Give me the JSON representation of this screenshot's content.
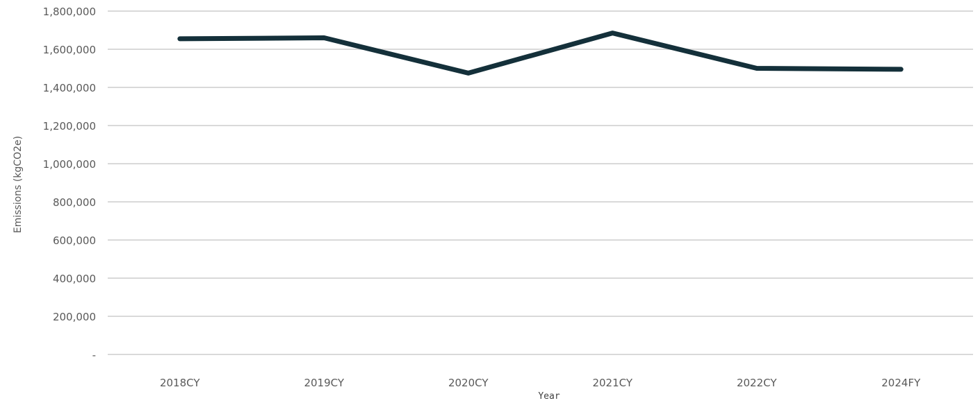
{
  "chart_data": {
    "type": "line",
    "title": "",
    "xlabel": "Year",
    "ylabel": "Emissions (kgCO2e)",
    "categories": [
      "2018CY",
      "2019CY",
      "2020CY",
      "2021CY",
      "2022CY",
      "2024FY"
    ],
    "series": [
      {
        "values": [
          1655000,
          1660000,
          1475000,
          1685000,
          1500000,
          1495000
        ],
        "color": "#14303a"
      }
    ],
    "ylim": [
      0,
      1800000
    ],
    "yticks": [
      0,
      200000,
      400000,
      600000,
      800000,
      1000000,
      1200000,
      1400000,
      1600000,
      1800000
    ],
    "ytick_labels": [
      "-",
      "200,000",
      "400,000",
      "600,000",
      "800,000",
      "1,000,000",
      "1,200,000",
      "1,400,000",
      "1,600,000",
      "1,800,000"
    ],
    "grid": "horizontal",
    "legend": "none"
  }
}
